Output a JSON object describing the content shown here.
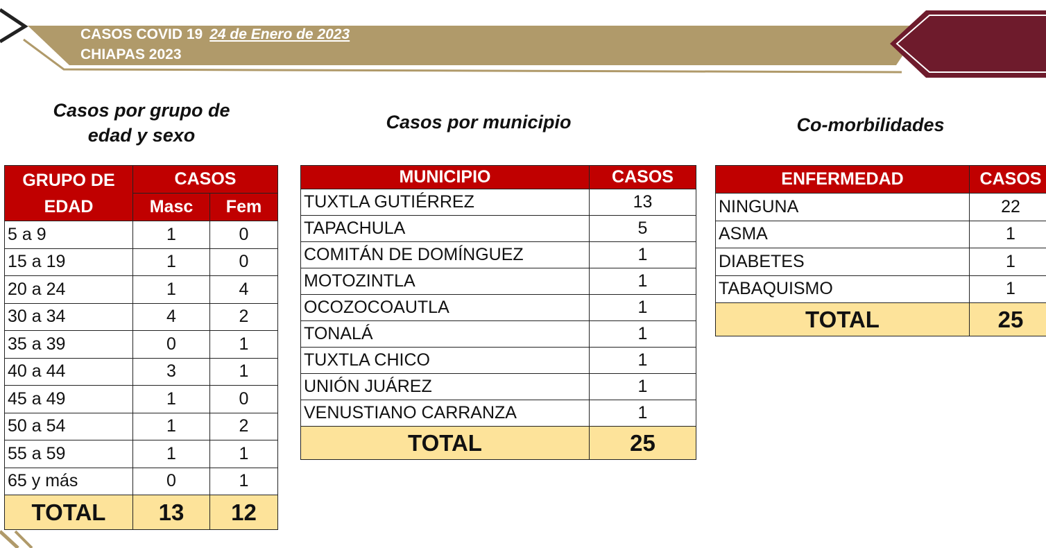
{
  "header": {
    "title": "CASOS COVID 19",
    "date": "24 de Enero de 2023",
    "subtitle": "CHIAPAS 2023",
    "colors": {
      "gold": "#b09a6a",
      "maroon": "#6e1b2c",
      "table_header": "#c00000",
      "total_row": "#fde39a"
    }
  },
  "age_sex": {
    "title_line1": "Casos por grupo de",
    "title_line2": "edad y sexo",
    "col_group": "GRUPO DE",
    "col_group2": "EDAD",
    "col_cases": "CASOS",
    "col_masc": "Masc",
    "col_fem": "Fem",
    "rows": [
      {
        "group": "5 a 9",
        "masc": "1",
        "fem": "0"
      },
      {
        "group": "15 a 19",
        "masc": "1",
        "fem": "0"
      },
      {
        "group": "20 a 24",
        "masc": "1",
        "fem": "4"
      },
      {
        "group": "30 a 34",
        "masc": "4",
        "fem": "2"
      },
      {
        "group": "35 a 39",
        "masc": "0",
        "fem": "1"
      },
      {
        "group": "40 a 44",
        "masc": "3",
        "fem": "1"
      },
      {
        "group": "45 a 49",
        "masc": "1",
        "fem": "0"
      },
      {
        "group": "50 a 54",
        "masc": "1",
        "fem": "2"
      },
      {
        "group": "55 a 59",
        "masc": "1",
        "fem": "1"
      },
      {
        "group": "65 y más",
        "masc": "0",
        "fem": "1"
      }
    ],
    "total_label": "TOTAL",
    "total_masc": "13",
    "total_fem": "12"
  },
  "municipio": {
    "title": "Casos por municipio",
    "col_name": "MUNICIPIO",
    "col_cases": "CASOS",
    "rows": [
      {
        "name": "TUXTLA GUTIÉRREZ",
        "cases": "13"
      },
      {
        "name": "TAPACHULA",
        "cases": "5"
      },
      {
        "name": "COMITÁN DE DOMÍNGUEZ",
        "cases": "1"
      },
      {
        "name": "MOTOZINTLA",
        "cases": "1"
      },
      {
        "name": "OCOZOCOAUTLA",
        "cases": "1"
      },
      {
        "name": "TONALÁ",
        "cases": "1"
      },
      {
        "name": "TUXTLA CHICO",
        "cases": "1"
      },
      {
        "name": "UNIÓN JUÁREZ",
        "cases": "1"
      },
      {
        "name": "VENUSTIANO CARRANZA",
        "cases": "1"
      }
    ],
    "total_label": "TOTAL",
    "total_cases": "25"
  },
  "comorbidades": {
    "title": "Co-morbilidades",
    "col_name": "ENFERMEDAD",
    "col_cases": "CASOS",
    "rows": [
      {
        "name": "NINGUNA",
        "cases": "22"
      },
      {
        "name": "ASMA",
        "cases": "1"
      },
      {
        "name": "DIABETES",
        "cases": "1"
      },
      {
        "name": "TABAQUISMO",
        "cases": "1"
      }
    ],
    "total_label": "TOTAL",
    "total_cases": "25"
  }
}
